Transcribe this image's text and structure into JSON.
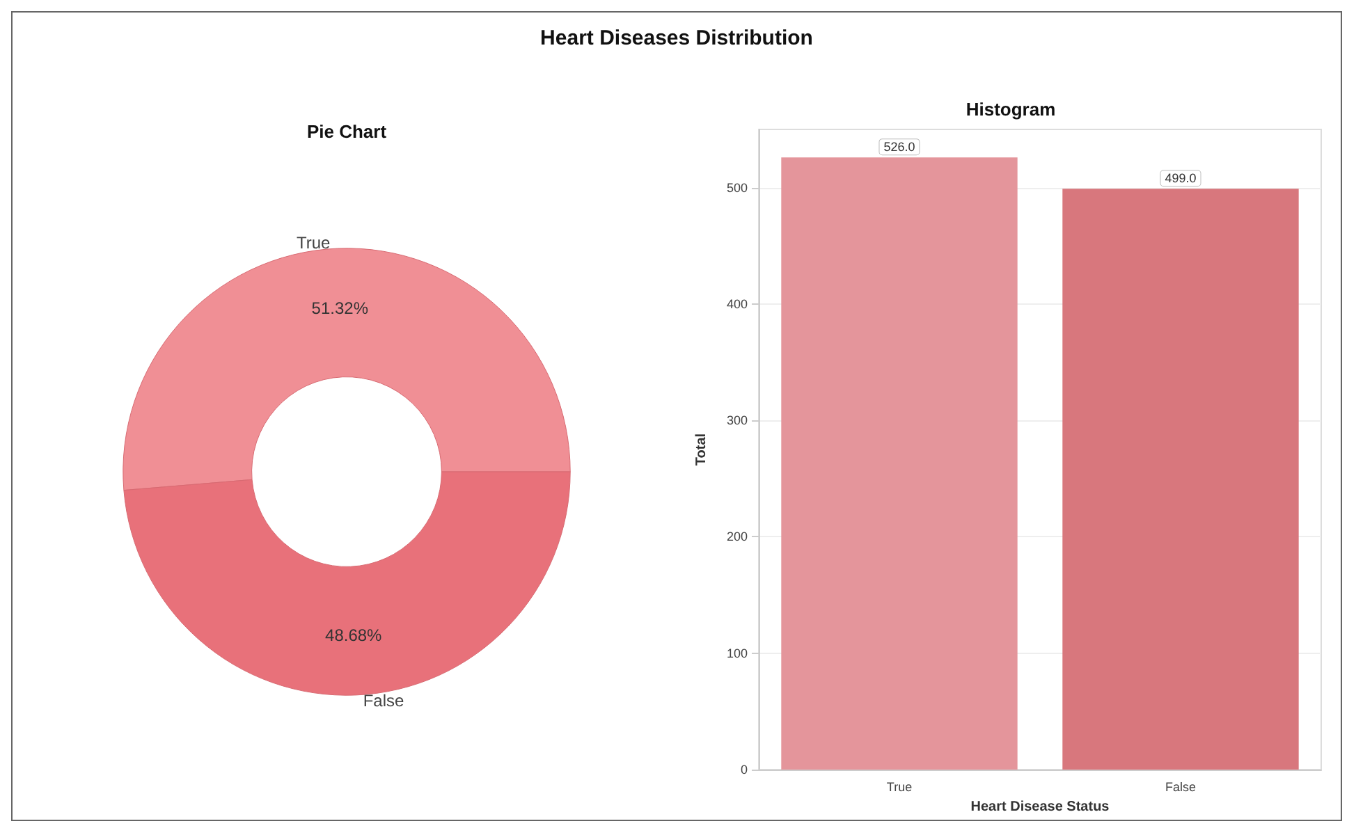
{
  "chart_data": [
    {
      "type": "donut",
      "title": "Pie Chart",
      "annotations": [
        "Heart Diseases Distribution"
      ],
      "categories": [
        "True",
        "False"
      ],
      "values": [
        51.32,
        48.68
      ],
      "colors": [
        "#f08f95",
        "#e8717a"
      ],
      "value_labels": [
        "51.32%",
        "48.68%"
      ]
    },
    {
      "type": "bar",
      "title": "Histogram",
      "categories": [
        "True",
        "False"
      ],
      "colors": [
        "#e4959b",
        "#d8777d"
      ],
      "values": [
        526,
        499
      ],
      "value_labels": [
        "526.0",
        "499.0"
      ],
      "xlabel": "Heart Disease Status",
      "ylabel": "Total",
      "ylim": [
        0,
        550
      ],
      "yticks": [
        0,
        100,
        200,
        300,
        400,
        500
      ],
      "grid": "y"
    }
  ]
}
